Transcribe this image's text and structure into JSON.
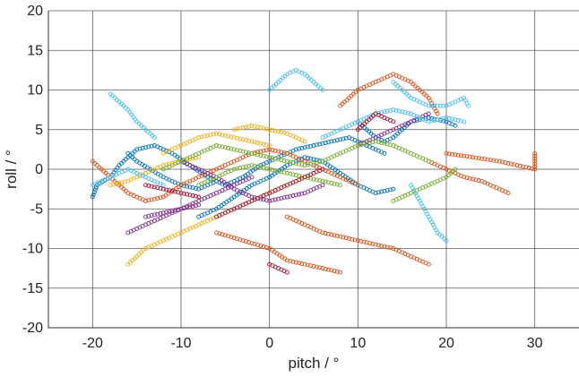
{
  "chart_data": {
    "type": "scatter",
    "xlabel": "pitch / °",
    "ylabel": "roll / °",
    "xlim": [
      -25,
      35
    ],
    "ylim": [
      -20,
      20
    ],
    "grid": true,
    "xticks": [
      {
        "v": -20,
        "label": "-20"
      },
      {
        "v": -10,
        "label": "-10"
      },
      {
        "v": 0,
        "label": "0"
      },
      {
        "v": 10,
        "label": "10"
      },
      {
        "v": 20,
        "label": "20"
      },
      {
        "v": 30,
        "label": "30"
      }
    ],
    "yticks": [
      {
        "v": -20,
        "label": "-20"
      },
      {
        "v": -15,
        "label": "-15"
      },
      {
        "v": -10,
        "label": "-10"
      },
      {
        "v": -5,
        "label": "-5"
      },
      {
        "v": 0,
        "label": "0"
      },
      {
        "v": 5,
        "label": "5"
      },
      {
        "v": 10,
        "label": "10"
      },
      {
        "v": 15,
        "label": "15"
      },
      {
        "v": 20,
        "label": "20"
      }
    ],
    "series": [
      {
        "color": "#0072bd",
        "tracks": [
          [
            [
              -20,
              -3.5
            ],
            [
              -19.5,
              -2
            ],
            [
              -18,
              -1
            ],
            [
              -17,
              0.5
            ],
            [
              -16,
              1.5
            ],
            [
              -15,
              2.5
            ],
            [
              -13,
              3
            ],
            [
              -11,
              2
            ],
            [
              -9,
              0.5
            ],
            [
              -7,
              -1
            ],
            [
              -5,
              -2
            ],
            [
              -3,
              -1
            ],
            [
              -1,
              0.5
            ],
            [
              1,
              1.5
            ],
            [
              3,
              2.5
            ],
            [
              5,
              3
            ],
            [
              7,
              3.5
            ],
            [
              9,
              4
            ],
            [
              11,
              3
            ],
            [
              13,
              2
            ]
          ],
          [
            [
              -8,
              -6
            ],
            [
              -6,
              -5
            ],
            [
              -4,
              -3.5
            ],
            [
              -2,
              -2
            ],
            [
              0,
              -1
            ],
            [
              2,
              0.5
            ],
            [
              4,
              1.5
            ],
            [
              6,
              1
            ],
            [
              8,
              -0.5
            ],
            [
              10,
              -2
            ],
            [
              12,
              -3
            ],
            [
              14,
              -2.5
            ]
          ],
          [
            [
              -16,
              2
            ],
            [
              -15,
              1
            ],
            [
              -13.5,
              0
            ],
            [
              -12,
              -1
            ],
            [
              -10,
              -2
            ],
            [
              -8,
              -2.5
            ],
            [
              -6,
              -1.5
            ]
          ],
          [
            [
              10,
              6
            ],
            [
              11,
              5
            ],
            [
              12,
              4
            ],
            [
              13,
              3.5
            ],
            [
              14,
              4
            ],
            [
              15,
              5
            ],
            [
              16,
              6
            ],
            [
              18,
              6.5
            ],
            [
              20,
              6
            ],
            [
              21,
              5.5
            ]
          ]
        ]
      },
      {
        "color": "#d95319",
        "tracks": [
          [
            [
              -20,
              1
            ],
            [
              -18,
              -1
            ],
            [
              -16,
              -3
            ],
            [
              -14,
              -4
            ],
            [
              -12,
              -3.5
            ],
            [
              -10,
              -2
            ],
            [
              -8,
              -1
            ],
            [
              -6,
              0
            ],
            [
              -4,
              1
            ],
            [
              -2,
              2
            ],
            [
              0,
              2.5
            ],
            [
              2,
              2
            ],
            [
              4,
              1
            ],
            [
              6,
              0
            ],
            [
              8,
              -1
            ],
            [
              10,
              -2
            ]
          ],
          [
            [
              18,
              1
            ],
            [
              20,
              0
            ],
            [
              22,
              -1
            ],
            [
              24,
              -1.5
            ],
            [
              26,
              -2.5
            ],
            [
              27,
              -3
            ]
          ],
          [
            [
              20,
              2
            ],
            [
              23,
              1.5
            ],
            [
              26,
              1
            ],
            [
              28,
              0.5
            ],
            [
              30,
              0
            ],
            [
              30,
              2
            ]
          ],
          [
            [
              2,
              -6
            ],
            [
              4,
              -7
            ],
            [
              6,
              -8
            ],
            [
              8,
              -8.5
            ],
            [
              10,
              -9
            ],
            [
              12,
              -9.5
            ],
            [
              14,
              -10
            ],
            [
              16,
              -11
            ],
            [
              18,
              -12
            ]
          ],
          [
            [
              -6,
              -8
            ],
            [
              -3,
              -9
            ],
            [
              0,
              -10
            ],
            [
              2,
              -11.5
            ],
            [
              4,
              -12
            ],
            [
              6,
              -12.5
            ],
            [
              8,
              -13
            ]
          ],
          [
            [
              8,
              8
            ],
            [
              10,
              10
            ],
            [
              12,
              11
            ],
            [
              14,
              12
            ],
            [
              16,
              11
            ],
            [
              18,
              9
            ],
            [
              19,
              7
            ]
          ]
        ]
      },
      {
        "color": "#edb120",
        "tracks": [
          [
            [
              -16,
              -12
            ],
            [
              -15,
              -11
            ],
            [
              -14,
              -10
            ],
            [
              -12,
              -9
            ],
            [
              -10,
              -8
            ],
            [
              -8,
              -7
            ],
            [
              -6,
              -6
            ],
            [
              -4,
              -5
            ],
            [
              -2,
              -4
            ],
            [
              0,
              -3
            ],
            [
              2,
              -2
            ],
            [
              4,
              -1
            ]
          ],
          [
            [
              -12,
              2
            ],
            [
              -10,
              3
            ],
            [
              -8,
              4
            ],
            [
              -6,
              4.5
            ],
            [
              -4,
              4
            ],
            [
              -2,
              3.5
            ],
            [
              0,
              3
            ]
          ],
          [
            [
              -18,
              -2
            ],
            [
              -16,
              -1.5
            ],
            [
              -14,
              -0.5
            ],
            [
              -12,
              0.5
            ],
            [
              -10,
              1
            ],
            [
              -8,
              1.5
            ]
          ],
          [
            [
              -4,
              5
            ],
            [
              -2,
              5.5
            ],
            [
              0,
              5
            ],
            [
              2,
              4.5
            ],
            [
              4,
              3.5
            ]
          ]
        ]
      },
      {
        "color": "#7e2f8e",
        "tracks": [
          [
            [
              -16,
              -8
            ],
            [
              -14,
              -7
            ],
            [
              -12,
              -6
            ],
            [
              -10,
              -5
            ],
            [
              -8,
              -4
            ],
            [
              -6,
              -3
            ],
            [
              -4,
              -2
            ],
            [
              -2,
              -1
            ]
          ],
          [
            [
              -10,
              1
            ],
            [
              -8,
              0
            ],
            [
              -6,
              -1
            ],
            [
              -4,
              -2.5
            ],
            [
              -2,
              -3.5
            ],
            [
              0,
              -4
            ],
            [
              2,
              -3.5
            ],
            [
              4,
              -3
            ],
            [
              6,
              -2
            ]
          ],
          [
            [
              10,
              3
            ],
            [
              12,
              4
            ],
            [
              14,
              5
            ],
            [
              16,
              6
            ],
            [
              18,
              7
            ]
          ],
          [
            [
              -14,
              -6
            ],
            [
              -12,
              -5.5
            ],
            [
              -10,
              -5
            ],
            [
              -8,
              -4.5
            ]
          ]
        ]
      },
      {
        "color": "#77ac30",
        "tracks": [
          [
            [
              -12,
              0
            ],
            [
              -10,
              1
            ],
            [
              -8,
              2
            ],
            [
              -6,
              3
            ],
            [
              -4,
              2.5
            ],
            [
              -2,
              2
            ],
            [
              0,
              1.5
            ],
            [
              2,
              1
            ],
            [
              4,
              0.5
            ],
            [
              6,
              1
            ],
            [
              8,
              2
            ],
            [
              10,
              3
            ],
            [
              12,
              3.5
            ],
            [
              14,
              3
            ],
            [
              16,
              2
            ],
            [
              18,
              1
            ]
          ],
          [
            [
              -8,
              -2
            ],
            [
              -6,
              -1
            ],
            [
              -4,
              0
            ],
            [
              -2,
              0.5
            ],
            [
              0,
              0
            ],
            [
              2,
              -0.5
            ],
            [
              4,
              -1
            ],
            [
              6,
              -1.5
            ],
            [
              8,
              -2
            ]
          ],
          [
            [
              14,
              -4
            ],
            [
              16,
              -3
            ],
            [
              18,
              -2
            ],
            [
              20,
              -1
            ],
            [
              21,
              0
            ]
          ]
        ]
      },
      {
        "color": "#4dbeee",
        "tracks": [
          [
            [
              -18,
              9.5
            ],
            [
              -17,
              8.5
            ],
            [
              -16,
              7.5
            ],
            [
              -15,
              6
            ],
            [
              -14,
              5
            ],
            [
              -13,
              4
            ]
          ],
          [
            [
              0,
              10
            ],
            [
              1,
              11
            ],
            [
              2,
              12
            ],
            [
              3,
              12.5
            ],
            [
              4,
              12
            ],
            [
              5,
              11
            ],
            [
              6,
              10
            ]
          ],
          [
            [
              14,
              11
            ],
            [
              15,
              10
            ],
            [
              16,
              9
            ],
            [
              18,
              8
            ],
            [
              20,
              8
            ],
            [
              22,
              9
            ],
            [
              22.5,
              8
            ]
          ],
          [
            [
              -20,
              -2
            ],
            [
              -18,
              -1
            ],
            [
              -16,
              0
            ],
            [
              -14,
              -1
            ],
            [
              -12,
              -2
            ]
          ],
          [
            [
              16,
              -2
            ],
            [
              17,
              -4
            ],
            [
              18,
              -6
            ],
            [
              19,
              -8
            ],
            [
              20,
              -9
            ]
          ],
          [
            [
              6,
              4
            ],
            [
              8,
              5
            ],
            [
              10,
              6
            ],
            [
              12,
              7
            ],
            [
              14,
              7.5
            ],
            [
              16,
              7
            ],
            [
              18,
              6
            ],
            [
              20,
              6.5
            ],
            [
              22,
              6
            ]
          ]
        ]
      },
      {
        "color": "#a2142f",
        "tracks": [
          [
            [
              -6,
              -6
            ],
            [
              -4,
              -5
            ],
            [
              -2,
              -4
            ],
            [
              0,
              -3
            ],
            [
              2,
              -2
            ],
            [
              4,
              -1
            ],
            [
              6,
              0
            ]
          ],
          [
            [
              10,
              5
            ],
            [
              11,
              6
            ],
            [
              12,
              7
            ],
            [
              13,
              6.5
            ],
            [
              14,
              6
            ]
          ],
          [
            [
              -14,
              -2
            ],
            [
              -12,
              -2.5
            ],
            [
              -10,
              -3
            ],
            [
              -8,
              -3.5
            ]
          ],
          [
            [
              0,
              -12
            ],
            [
              2,
              -13
            ]
          ]
        ]
      }
    ]
  }
}
